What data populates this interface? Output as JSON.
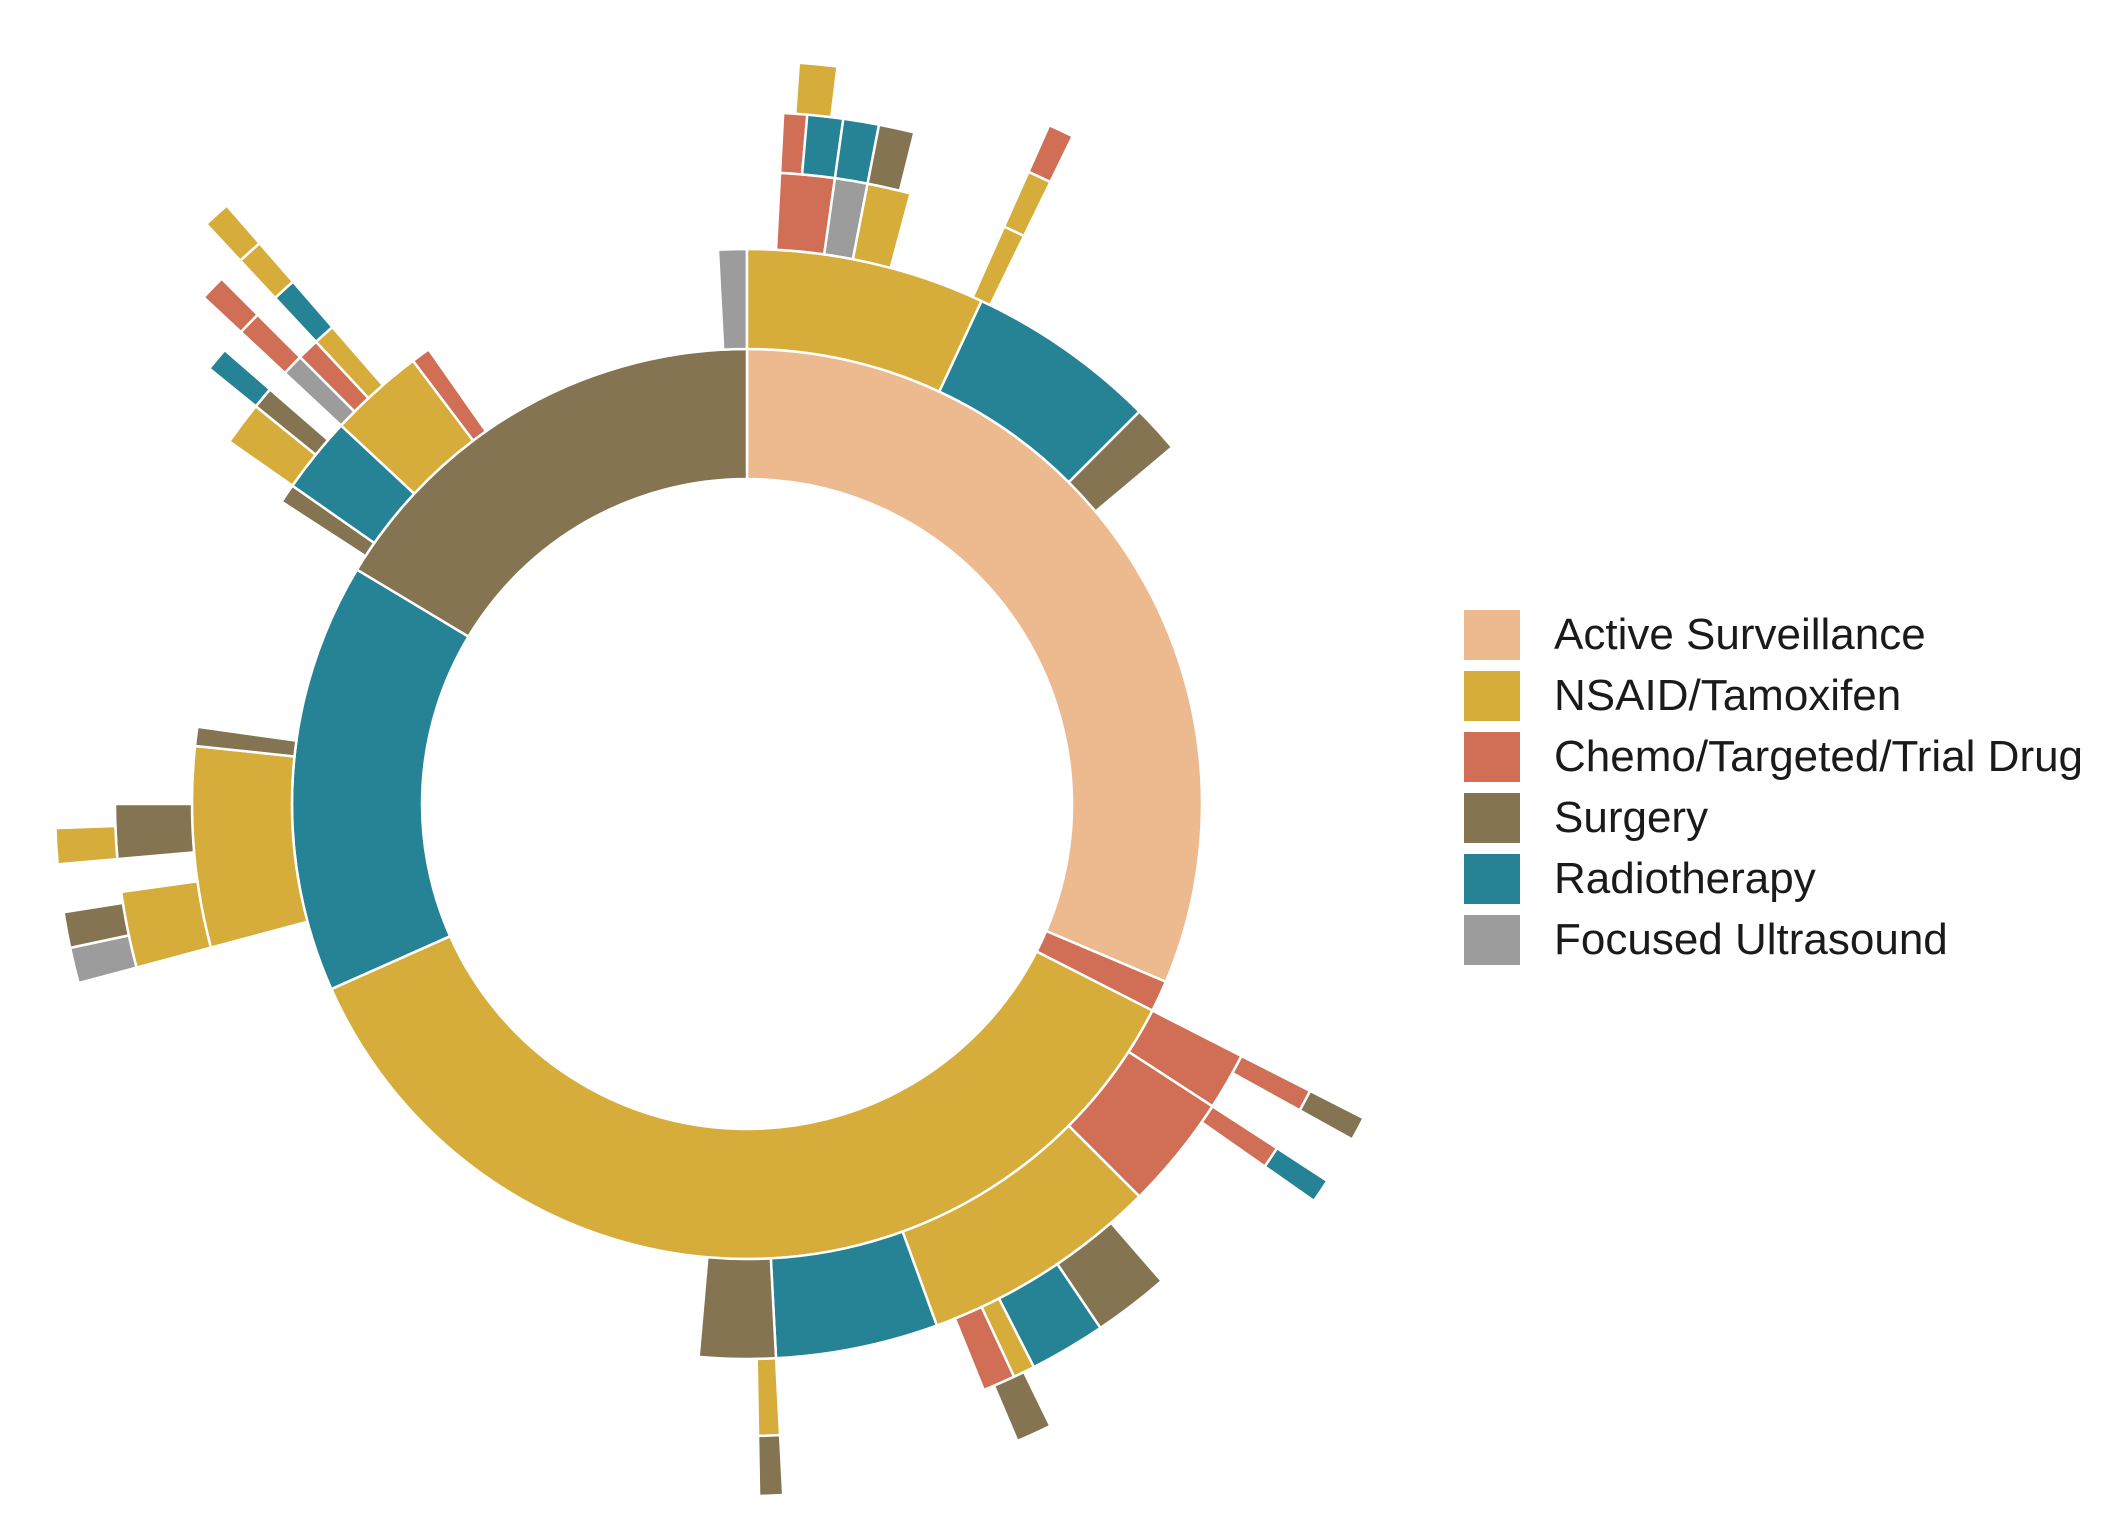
{
  "chart_data": {
    "type": "sunburst",
    "title": "",
    "categories": [
      {
        "key": "AS",
        "name": "Active Surveillance",
        "color": "#EDB98F"
      },
      {
        "key": "NT",
        "name": "NSAID/Tamoxifen",
        "color": "#D6AD3A"
      },
      {
        "key": "CH",
        "name": "Chemo/Targeted/Trial Drug",
        "color": "#D06F55"
      },
      {
        "key": "SU",
        "name": "Surgery",
        "color": "#857451"
      },
      {
        "key": "RT",
        "name": "Radiotherapy",
        "color": "#258395"
      },
      {
        "key": "FU",
        "name": "Focused Ultrasound",
        "color": "#9C9C9C"
      }
    ],
    "legend": {
      "position": "right"
    },
    "rings": [
      {
        "level": 1,
        "segments": [
          {
            "cat": "AS",
            "start": 0,
            "end": 113
          },
          {
            "cat": "CH",
            "start": 113,
            "end": 117
          },
          {
            "cat": "NT",
            "start": 117,
            "end": 246
          },
          {
            "cat": "RT",
            "start": 246,
            "end": 301
          },
          {
            "cat": "SU",
            "start": 301,
            "end": 360
          }
        ]
      },
      {
        "level": 2,
        "segments": [
          {
            "cat": "FU",
            "start": 357,
            "end": 360
          },
          {
            "cat": "NT",
            "start": 0,
            "end": 25
          },
          {
            "cat": "RT",
            "start": 25,
            "end": 45
          },
          {
            "cat": "SU",
            "start": 45,
            "end": 50
          },
          {
            "cat": "CH",
            "start": 117,
            "end": 123
          },
          {
            "cat": "CH",
            "start": 123,
            "end": 135
          },
          {
            "cat": "NT",
            "start": 135,
            "end": 160
          },
          {
            "cat": "RT",
            "start": 160,
            "end": 177
          },
          {
            "cat": "SU",
            "start": 177,
            "end": 185
          },
          {
            "cat": "NT",
            "start": 255,
            "end": 276
          },
          {
            "cat": "SU",
            "start": 276,
            "end": 278
          },
          {
            "cat": "SU",
            "start": 303,
            "end": 305
          },
          {
            "cat": "RT",
            "start": 305,
            "end": 313
          },
          {
            "cat": "NT",
            "start": 313,
            "end": 323
          },
          {
            "cat": "CH",
            "start": 323,
            "end": 325
          }
        ]
      },
      {
        "level": 3,
        "segments": [
          {
            "cat": "CH",
            "start": 3,
            "end": 8
          },
          {
            "cat": "FU",
            "start": 8,
            "end": 11
          },
          {
            "cat": "NT",
            "start": 11,
            "end": 15
          },
          {
            "cat": "NT",
            "start": 24,
            "end": 26
          },
          {
            "cat": "CH",
            "start": 117,
            "end": 119
          },
          {
            "cat": "CH",
            "start": 123,
            "end": 125
          },
          {
            "cat": "SU",
            "start": 139,
            "end": 146
          },
          {
            "cat": "RT",
            "start": 146,
            "end": 153
          },
          {
            "cat": "NT",
            "start": 153,
            "end": 155
          },
          {
            "cat": "CH",
            "start": 155,
            "end": 158
          },
          {
            "cat": "NT",
            "start": 177,
            "end": 179
          },
          {
            "cat": "NT",
            "start": 255,
            "end": 262
          },
          {
            "cat": "SU",
            "start": 265,
            "end": 270
          },
          {
            "cat": "NT",
            "start": 305,
            "end": 309
          },
          {
            "cat": "SU",
            "start": 309,
            "end": 311
          },
          {
            "cat": "FU",
            "start": 313,
            "end": 315
          },
          {
            "cat": "CH",
            "start": 315,
            "end": 317
          },
          {
            "cat": "NT",
            "start": 317,
            "end": 319
          }
        ]
      },
      {
        "level": 4,
        "segments": [
          {
            "cat": "CH",
            "start": 3,
            "end": 5
          },
          {
            "cat": "RT",
            "start": 5,
            "end": 8
          },
          {
            "cat": "RT",
            "start": 8,
            "end": 11
          },
          {
            "cat": "SU",
            "start": 11,
            "end": 14
          },
          {
            "cat": "NT",
            "start": 24,
            "end": 26
          },
          {
            "cat": "SU",
            "start": 117,
            "end": 119
          },
          {
            "cat": "RT",
            "start": 123,
            "end": 125
          },
          {
            "cat": "SU",
            "start": 154,
            "end": 157
          },
          {
            "cat": "SU",
            "start": 177,
            "end": 179
          },
          {
            "cat": "FU",
            "start": 255,
            "end": 258
          },
          {
            "cat": "SU",
            "start": 258,
            "end": 261
          },
          {
            "cat": "NT",
            "start": 265,
            "end": 268
          },
          {
            "cat": "CH",
            "start": 313,
            "end": 315
          },
          {
            "cat": "RT",
            "start": 317,
            "end": 319
          },
          {
            "cat": "RT",
            "start": 309,
            "end": 311
          }
        ]
      },
      {
        "level": 5,
        "segments": [
          {
            "cat": "NT",
            "start": 4,
            "end": 7
          },
          {
            "cat": "CH",
            "start": 24,
            "end": 26
          },
          {
            "cat": "NT",
            "start": 317,
            "end": 319
          },
          {
            "cat": "CH",
            "start": 313,
            "end": 315
          }
        ]
      },
      {
        "level": 6,
        "segments": [
          {
            "cat": "NT",
            "start": 317,
            "end": 319
          }
        ]
      }
    ]
  }
}
